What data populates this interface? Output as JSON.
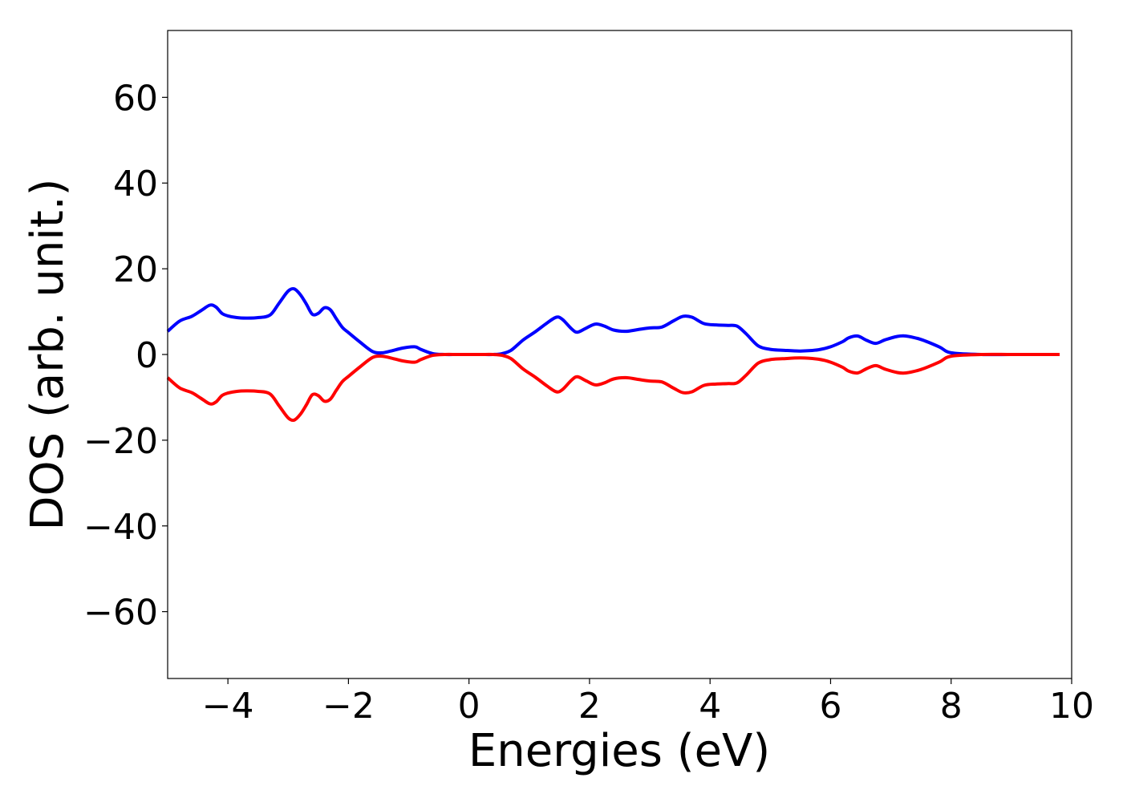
{
  "chart_data": {
    "type": "line",
    "title": "",
    "xlabel": "Energies (eV)",
    "ylabel": "DOS (arb. unit.)",
    "xlim": [
      -5,
      10
    ],
    "ylim": [
      -75.6,
      75.6
    ],
    "grid": false,
    "legend": "none",
    "x_ticks": [
      -4,
      -2,
      0,
      2,
      4,
      6,
      8,
      10
    ],
    "y_ticks": [
      -60,
      -40,
      -20,
      0,
      20,
      40,
      60
    ],
    "x_tick_labels": [
      "−4",
      "−2",
      "0",
      "2",
      "4",
      "6",
      "8",
      "10"
    ],
    "y_tick_labels": [
      "−60",
      "−40",
      "−20",
      "0",
      "20",
      "40",
      "60"
    ],
    "series": [
      {
        "color": "#0000ff",
        "x": [
          -5.0,
          -4.8,
          -4.6,
          -4.45,
          -4.3,
          -4.2,
          -4.1,
          -4.0,
          -3.85,
          -3.7,
          -3.5,
          -3.3,
          -3.15,
          -3.0,
          -2.9,
          -2.8,
          -2.7,
          -2.6,
          -2.5,
          -2.4,
          -2.3,
          -2.2,
          -2.1,
          -2.0,
          -1.8,
          -1.6,
          -1.45,
          -1.3,
          -1.1,
          -0.9,
          -0.8,
          -0.6,
          -0.4,
          -0.2,
          0.0,
          0.2,
          0.4,
          0.55,
          0.7,
          0.9,
          1.1,
          1.3,
          1.45,
          1.55,
          1.7,
          1.8,
          1.95,
          2.1,
          2.25,
          2.4,
          2.6,
          2.8,
          3.0,
          3.2,
          3.4,
          3.55,
          3.7,
          3.9,
          4.1,
          4.3,
          4.45,
          4.6,
          4.8,
          5.0,
          5.2,
          5.5,
          5.8,
          6.0,
          6.2,
          6.3,
          6.45,
          6.6,
          6.75,
          6.9,
          7.1,
          7.25,
          7.5,
          7.8,
          8.0,
          8.5,
          9.0,
          9.5,
          9.8
        ],
        "values": [
          5.4,
          7.8,
          8.9,
          10.2,
          11.5,
          11.1,
          9.6,
          9.0,
          8.6,
          8.5,
          8.6,
          9.2,
          12.0,
          14.8,
          15.3,
          14.0,
          11.8,
          9.4,
          9.6,
          10.9,
          10.4,
          8.3,
          6.3,
          5.1,
          2.8,
          0.7,
          0.4,
          0.8,
          1.5,
          1.8,
          1.2,
          0.2,
          0.0,
          0.0,
          0.0,
          0.0,
          0.0,
          0.2,
          1.0,
          3.4,
          5.3,
          7.4,
          8.7,
          8.2,
          6.0,
          5.2,
          6.2,
          7.1,
          6.6,
          5.7,
          5.4,
          5.8,
          6.2,
          6.4,
          7.9,
          8.9,
          8.7,
          7.2,
          6.9,
          6.8,
          6.6,
          4.8,
          2.0,
          1.2,
          1.0,
          0.8,
          1.1,
          1.8,
          3.0,
          3.9,
          4.3,
          3.3,
          2.6,
          3.4,
          4.2,
          4.3,
          3.5,
          1.8,
          0.4,
          0.0,
          0.0,
          0.0,
          0.0
        ]
      },
      {
        "color": "#ff0000",
        "x": [
          -5.0,
          -4.8,
          -4.6,
          -4.45,
          -4.3,
          -4.2,
          -4.1,
          -4.0,
          -3.85,
          -3.7,
          -3.5,
          -3.3,
          -3.15,
          -3.0,
          -2.9,
          -2.8,
          -2.7,
          -2.6,
          -2.5,
          -2.4,
          -2.3,
          -2.2,
          -2.1,
          -2.0,
          -1.8,
          -1.6,
          -1.45,
          -1.3,
          -1.1,
          -0.9,
          -0.8,
          -0.6,
          -0.4,
          -0.2,
          0.0,
          0.2,
          0.4,
          0.55,
          0.7,
          0.9,
          1.1,
          1.3,
          1.45,
          1.55,
          1.7,
          1.8,
          1.95,
          2.1,
          2.25,
          2.4,
          2.6,
          2.8,
          3.0,
          3.2,
          3.4,
          3.55,
          3.7,
          3.9,
          4.1,
          4.3,
          4.45,
          4.6,
          4.8,
          5.0,
          5.2,
          5.5,
          5.8,
          6.0,
          6.2,
          6.3,
          6.45,
          6.6,
          6.75,
          6.9,
          7.1,
          7.25,
          7.5,
          7.8,
          8.0,
          8.5,
          9.0,
          9.5,
          9.8
        ],
        "values": [
          -5.4,
          -7.8,
          -8.9,
          -10.2,
          -11.5,
          -11.1,
          -9.6,
          -9.0,
          -8.6,
          -8.5,
          -8.6,
          -9.2,
          -12.0,
          -14.8,
          -15.3,
          -14.0,
          -11.8,
          -9.4,
          -9.6,
          -10.9,
          -10.4,
          -8.3,
          -6.3,
          -5.1,
          -2.8,
          -0.7,
          -0.4,
          -0.8,
          -1.5,
          -1.8,
          -1.2,
          -0.2,
          0.0,
          0.0,
          0.0,
          0.0,
          0.0,
          -0.2,
          -1.0,
          -3.4,
          -5.3,
          -7.4,
          -8.7,
          -8.2,
          -6.0,
          -5.2,
          -6.2,
          -7.1,
          -6.6,
          -5.7,
          -5.4,
          -5.8,
          -6.2,
          -6.4,
          -7.9,
          -8.9,
          -8.7,
          -7.2,
          -6.9,
          -6.8,
          -6.6,
          -4.8,
          -2.0,
          -1.2,
          -1.0,
          -0.8,
          -1.1,
          -1.8,
          -3.0,
          -3.9,
          -4.3,
          -3.3,
          -2.6,
          -3.4,
          -4.2,
          -4.3,
          -3.5,
          -1.8,
          -0.4,
          0.0,
          0.0,
          0.0,
          0.0
        ]
      }
    ]
  }
}
